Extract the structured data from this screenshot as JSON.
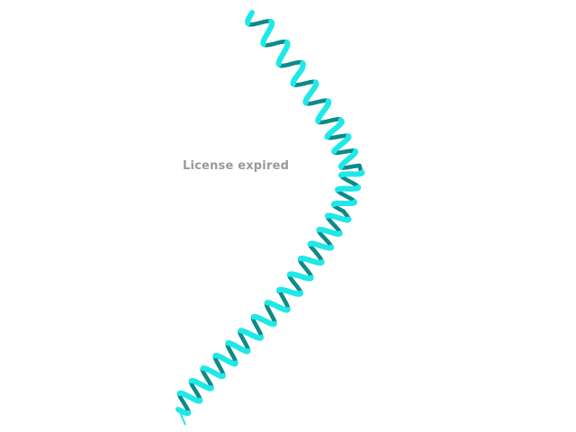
{
  "viewer": {
    "watermark_text": "License expired",
    "background_color": "#ffffff",
    "watermark_color": "#9a9a9a",
    "molecule": {
      "representation": "cartoon",
      "secondary_structure": "alpha-helix",
      "color": "#1fe8e8",
      "shadow_color": "#0e8a8a"
    }
  }
}
